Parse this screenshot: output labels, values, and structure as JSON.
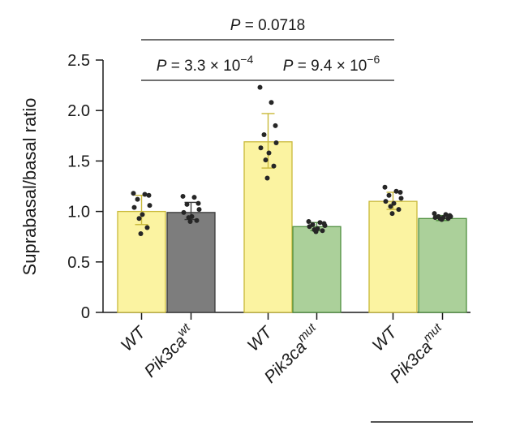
{
  "chart_data": {
    "type": "bar",
    "ylabel": "Suprabasal/basal ratio",
    "ylim": [
      0,
      2.5
    ],
    "yticks": [
      {
        "value": 0,
        "label": "0"
      },
      {
        "value": 0.5,
        "label": "0.5"
      },
      {
        "value": 1.0,
        "label": "1.0"
      },
      {
        "value": 1.5,
        "label": "1.5"
      },
      {
        "value": 2.0,
        "label": "2.0"
      },
      {
        "value": 2.5,
        "label": "2.5"
      }
    ],
    "colors": {
      "yellow_fill": "#fbf3a1",
      "yellow_edge": "#c9b93a",
      "gray_fill": "#7d7d7d",
      "gray_edge": "#3a3a3a",
      "green_fill": "#abd09a",
      "green_edge": "#4f8f3f",
      "point": "#262626"
    },
    "bars": [
      {
        "category": "WT",
        "superscript": "",
        "group": 0,
        "color": "yellow",
        "value": 1.0,
        "error": [
          0.87,
          1.16
        ],
        "points": [
          1.18,
          1.17,
          1.16,
          1.12,
          1.06,
          1.04,
          0.97,
          0.93,
          0.84,
          0.78
        ]
      },
      {
        "category": "Pik3ca",
        "superscript": "wt",
        "group": 0,
        "color": "gray",
        "value": 0.99,
        "error": [
          0.92,
          1.09
        ],
        "points": [
          1.15,
          1.14,
          1.08,
          1.07,
          1.02,
          0.99,
          0.95,
          0.94,
          0.91,
          0.9
        ]
      },
      {
        "category": "WT",
        "superscript": "",
        "group": 1,
        "color": "yellow",
        "value": 1.69,
        "error": [
          1.43,
          1.97
        ],
        "points": [
          2.23,
          2.08,
          1.85,
          1.76,
          1.68,
          1.63,
          1.58,
          1.51,
          1.45,
          1.33
        ]
      },
      {
        "category": "Pik3ca",
        "superscript": "mut",
        "group": 1,
        "color": "green",
        "value": 0.85,
        "error": [
          0.81,
          0.89
        ],
        "points": [
          0.9,
          0.89,
          0.88,
          0.87,
          0.86,
          0.85,
          0.83,
          0.82,
          0.81,
          0.8
        ]
      },
      {
        "category": "WT",
        "superscript": "",
        "group": 2,
        "color": "yellow",
        "value": 1.1,
        "error": [
          1.02,
          1.19
        ],
        "points": [
          1.24,
          1.2,
          1.19,
          1.16,
          1.13,
          1.1,
          1.08,
          1.05,
          1.02,
          0.98
        ]
      },
      {
        "category": "Pik3ca",
        "superscript": "mut",
        "group": 2,
        "color": "green",
        "value": 0.93,
        "error": [
          0.91,
          0.96
        ],
        "points": [
          0.98,
          0.97,
          0.96,
          0.95,
          0.95,
          0.94,
          0.94,
          0.93,
          0.93,
          0.92
        ]
      }
    ],
    "comparisons": [
      {
        "from": 0,
        "to": 2,
        "level": 1,
        "prefix": "P",
        "text": " = 3.3 × 10",
        "exponent": "−4"
      },
      {
        "from": 2,
        "to": 3,
        "level": 1,
        "prefix": "P",
        "text": " = 9.4 × 10",
        "exponent": "−6"
      },
      {
        "from": 0,
        "to": 4,
        "level": 2,
        "prefix": "P",
        "text": " = 0.0718",
        "exponent": ""
      }
    ]
  }
}
